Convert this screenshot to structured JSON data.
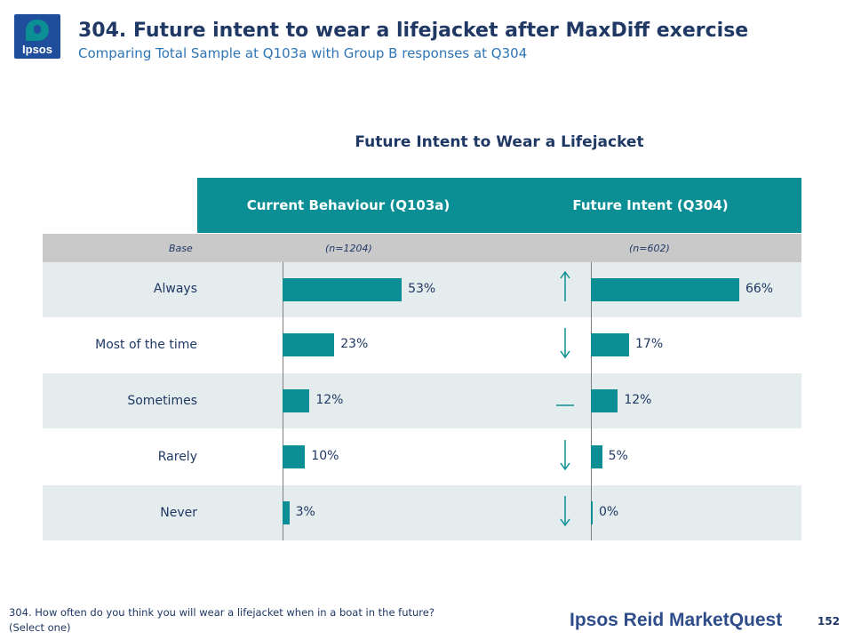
{
  "logo": {
    "text": "Ipsos"
  },
  "slide": {
    "title": "304. Future intent to wear a lifejacket after MaxDiff exercise",
    "subtitle": "Comparing Total Sample at Q103a with Group B responses at Q304",
    "footnote_line1": "304. How often do you think you will wear a lifejacket when in a boat in the future?",
    "footnote_line2": "(Select one)",
    "brand": "Ipsos Reid MarketQuest",
    "page_number": "152"
  },
  "chart_data": {
    "type": "bar",
    "orientation": "horizontal",
    "title": "Future Intent to Wear a Lifejacket",
    "base_label": "Base",
    "categories": [
      "Always",
      "Most of the time",
      "Sometimes",
      "Rarely",
      "Never"
    ],
    "series": [
      {
        "name": "Current Behaviour (Q103a)",
        "base": "(n=1204)",
        "values": [
          53,
          23,
          12,
          10,
          3
        ],
        "labels": [
          "53%",
          "23%",
          "12%",
          "10%",
          "3%"
        ]
      },
      {
        "name": "Future Intent (Q304)",
        "base": "(n=602)",
        "values": [
          66,
          17,
          12,
          5,
          0
        ],
        "labels": [
          "66%",
          "17%",
          "12%",
          "5%",
          "0%"
        ]
      }
    ],
    "change_indicators": [
      "up",
      "down",
      "same",
      "down",
      "down"
    ],
    "xlim": [
      0,
      100
    ],
    "colors": {
      "bar": "#0c8f94",
      "header": "#0c8f94",
      "band": "#e4ecee",
      "base_row": "#c9c9c9"
    }
  }
}
